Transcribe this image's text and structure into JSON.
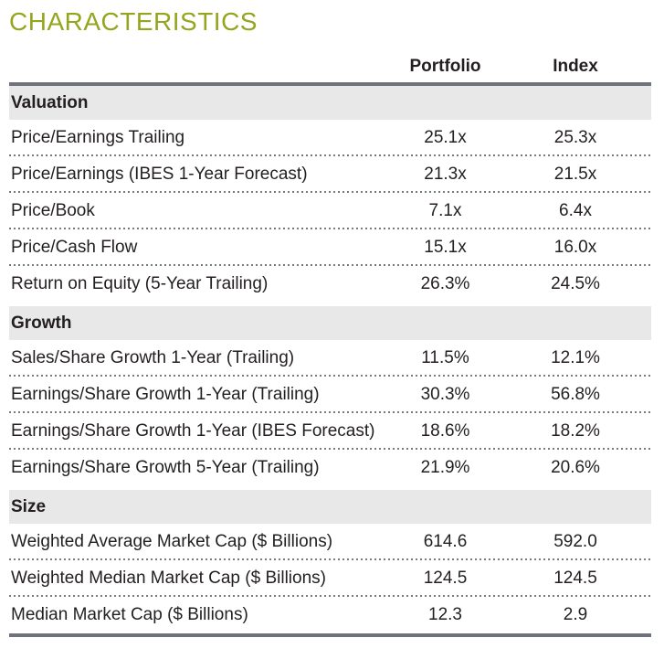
{
  "title": "CHARACTERISTICS",
  "colors": {
    "accent_green": "#95a51e",
    "heavy_rule": "#6e737b",
    "section_band": "#e8e8e8",
    "dotted_separator": "#757b82",
    "text": "#231f20"
  },
  "table": {
    "columns": {
      "portfolio": "Portfolio",
      "index": "Index"
    },
    "sections": [
      {
        "label": "Valuation",
        "rows": [
          {
            "label": "Price/Earnings Trailing",
            "portfolio": "25.1x",
            "index": "25.3x"
          },
          {
            "label": "Price/Earnings (IBES 1-Year Forecast)",
            "portfolio": "21.3x",
            "index": "21.5x"
          },
          {
            "label": "Price/Book",
            "portfolio": "7.1x",
            "index": "6.4x"
          },
          {
            "label": "Price/Cash Flow",
            "portfolio": "15.1x",
            "index": "16.0x"
          },
          {
            "label": "Return on Equity (5-Year Trailing)",
            "portfolio": "26.3%",
            "index": "24.5%"
          }
        ]
      },
      {
        "label": "Growth",
        "rows": [
          {
            "label": "Sales/Share Growth 1-Year (Trailing)",
            "portfolio": "11.5%",
            "index": "12.1%"
          },
          {
            "label": "Earnings/Share Growth 1-Year (Trailing)",
            "portfolio": "30.3%",
            "index": "56.8%"
          },
          {
            "label": "Earnings/Share Growth 1-Year (IBES Forecast)",
            "portfolio": "18.6%",
            "index": "18.2%"
          },
          {
            "label": "Earnings/Share Growth 5-Year (Trailing)",
            "portfolio": "21.9%",
            "index": "20.6%"
          }
        ]
      },
      {
        "label": "Size",
        "rows": [
          {
            "label": "Weighted Average Market Cap ($ Billions)",
            "portfolio": "614.6",
            "index": "592.0"
          },
          {
            "label": "Weighted Median Market Cap ($ Billions)",
            "portfolio": "124.5",
            "index": "124.5"
          },
          {
            "label": "Median Market Cap ($ Billions)",
            "portfolio": "12.3",
            "index": "2.9"
          }
        ]
      }
    ]
  }
}
